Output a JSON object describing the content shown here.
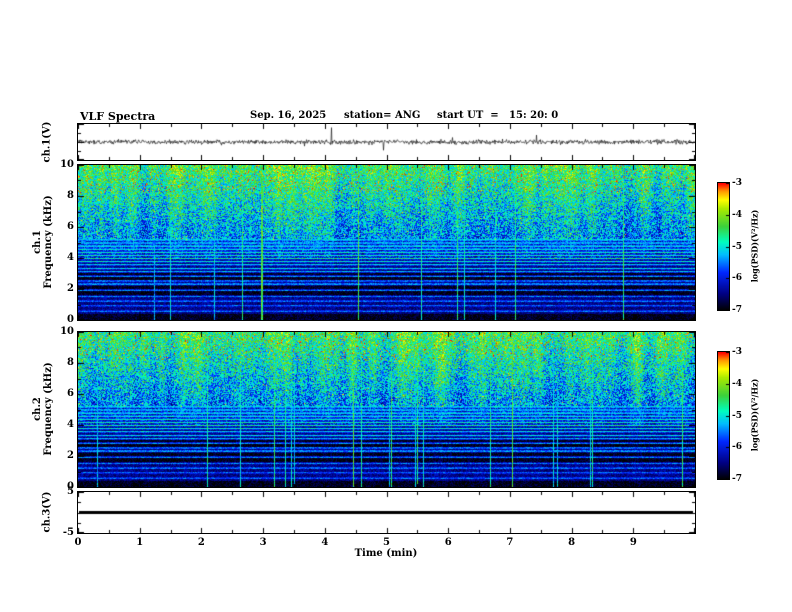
{
  "header": {
    "title": "VLF Spectra",
    "date": "Sep. 16, 2025",
    "station": "station= ANG",
    "start_ut": "start UT  =   15: 20: 0"
  },
  "x_axis": {
    "label": "Time (min)",
    "range": [
      0,
      10
    ],
    "tick_labels": [
      "0",
      "1",
      "2",
      "3",
      "4",
      "5",
      "6",
      "7",
      "8",
      "9"
    ]
  },
  "panels": {
    "ch1_wave": {
      "ylabel": "ch.1(V)"
    },
    "ch1_spec": {
      "ylabel_channel": "ch.1",
      "ylabel_axis": "Frequency (kHz)",
      "yrange": [
        0,
        10
      ],
      "ytick_labels": [
        "10",
        "8",
        "6",
        "4",
        "2",
        "0"
      ]
    },
    "ch2_spec": {
      "ylabel_channel": "ch.2",
      "ylabel_axis": "Frequency (kHz)",
      "yrange": [
        0,
        10
      ],
      "ytick_labels": [
        "10",
        "8",
        "6",
        "4",
        "2",
        "0"
      ]
    },
    "ch3_wave": {
      "ylabel": "ch.3(V)",
      "yrange": [
        -5,
        5
      ],
      "ytick_labels": [
        "5",
        "-5"
      ]
    }
  },
  "colorbar": {
    "label": "log(PSD)(V²/Hz)",
    "tick_labels": [
      "-3",
      "-4",
      "-5",
      "-6",
      "-7"
    ],
    "value_range": [
      -7,
      -3
    ],
    "stops": [
      [
        0.0,
        0,
        0,
        0
      ],
      [
        0.13,
        0,
        0,
        130
      ],
      [
        0.3,
        0,
        40,
        255
      ],
      [
        0.44,
        0,
        190,
        255
      ],
      [
        0.54,
        0,
        255,
        190
      ],
      [
        0.66,
        60,
        210,
        60
      ],
      [
        0.8,
        170,
        235,
        0
      ],
      [
        0.87,
        255,
        255,
        0
      ],
      [
        0.94,
        255,
        150,
        0
      ],
      [
        1.0,
        255,
        0,
        0
      ]
    ]
  },
  "chart_data": [
    {
      "type": "line",
      "name": "ch1_waveform",
      "ylabel": "ch.1(V)",
      "x_range": [
        0,
        10
      ],
      "description": "Broadband noise trace centered on 0 V with sporadic impulsive spikes (sferics) across the full 10 min record",
      "seed": 101
    },
    {
      "type": "heatmap",
      "name": "ch1_spectrogram",
      "xlabel": "Time (min)",
      "ylabel": "ch.1 Frequency (kHz)",
      "x_range": [
        0,
        10
      ],
      "y_range": [
        0,
        10
      ],
      "value_label": "log(PSD)(V²/Hz)",
      "value_range": [
        -7,
        -3
      ],
      "seed": 777,
      "features": {
        "upper_diffuse_band_kHz": [
          5.2,
          10
        ],
        "upper_base_level": [
          -5.4,
          -4.35
        ],
        "mid_band_kHz": [
          3.95,
          5.2
        ],
        "mid_base_level": -5.9,
        "lower_base_level": -6.45,
        "dark_bands_kHz": [
          [
            0.0,
            0.45
          ],
          [
            1.6,
            2.2
          ],
          [
            2.6,
            3.05
          ]
        ],
        "line_frequencies_kHz": [
          [
            0.6,
            1.5
          ],
          [
            0.95,
            1.4
          ],
          [
            1.25,
            1.6
          ],
          [
            1.55,
            1.3
          ],
          [
            1.95,
            1.5
          ],
          [
            2.35,
            1.9
          ],
          [
            2.55,
            1.7
          ],
          [
            2.85,
            1.5
          ],
          [
            3.15,
            1.7
          ],
          [
            3.35,
            1.8
          ],
          [
            3.6,
            1.9
          ],
          [
            3.8,
            2.0
          ],
          [
            4.0,
            2.1
          ],
          [
            4.2,
            2.1
          ],
          [
            4.4,
            2.2
          ],
          [
            4.6,
            2.2
          ],
          [
            4.8,
            2.3
          ],
          [
            5.0,
            2.2
          ],
          [
            5.2,
            2.3
          ]
        ],
        "red_speckles_above_kHz": 8.2,
        "sferic_probability": 0.025
      }
    },
    {
      "type": "heatmap",
      "name": "ch2_spectrogram",
      "xlabel": "Time (min)",
      "ylabel": "ch.2 Frequency (kHz)",
      "x_range": [
        0,
        10
      ],
      "y_range": [
        0,
        10
      ],
      "value_label": "log(PSD)(V²/Hz)",
      "value_range": [
        -7,
        -3
      ],
      "seed": 1337,
      "features": {
        "upper_diffuse_band_kHz": [
          5.2,
          10
        ],
        "upper_base_level": [
          -5.4,
          -4.35
        ],
        "mid_band_kHz": [
          3.95,
          5.2
        ],
        "mid_base_level": -5.9,
        "lower_base_level": -6.45,
        "dark_bands_kHz": [
          [
            0.0,
            0.45
          ],
          [
            1.6,
            2.2
          ],
          [
            2.6,
            3.05
          ]
        ],
        "line_frequencies_kHz": [
          [
            0.6,
            1.5
          ],
          [
            0.95,
            1.4
          ],
          [
            1.25,
            1.6
          ],
          [
            1.55,
            1.3
          ],
          [
            1.95,
            1.5
          ],
          [
            2.35,
            1.9
          ],
          [
            2.55,
            1.7
          ],
          [
            2.85,
            1.5
          ],
          [
            3.15,
            1.7
          ],
          [
            3.35,
            1.8
          ],
          [
            3.6,
            1.9
          ],
          [
            3.8,
            2.0
          ],
          [
            4.0,
            2.1
          ],
          [
            4.2,
            2.1
          ],
          [
            4.4,
            2.2
          ],
          [
            4.6,
            2.2
          ],
          [
            4.8,
            2.3
          ],
          [
            5.0,
            2.2
          ],
          [
            5.2,
            2.3
          ]
        ],
        "red_speckles_above_kHz": 8.2,
        "sferic_probability": 0.025
      }
    },
    {
      "type": "line",
      "name": "ch3_waveform",
      "ylabel": "ch.3(V)",
      "y_range": [
        -5,
        5
      ],
      "constant_value": 0,
      "description": "Flat trace at 0 V for the full 10 min record (no signal on channel 3)"
    }
  ]
}
